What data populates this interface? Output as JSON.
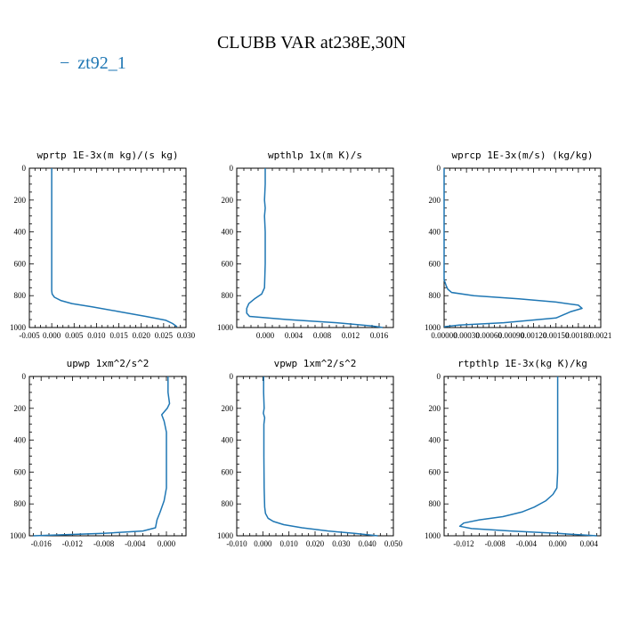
{
  "figure": {
    "title": "CLUBB VAR at238E,30N",
    "legend": [
      {
        "name": "zt92_1",
        "symbol": "−"
      }
    ]
  },
  "colors": {
    "series": "#1f77b4",
    "axes": "#000000"
  },
  "chart_data": [
    {
      "type": "line",
      "title": "wprtp  1E-3x(m kg)/(s kg)",
      "xlim": [
        -0.005,
        0.03
      ],
      "ylim": [
        1000,
        0
      ],
      "xticks": [
        -0.005,
        0.0,
        0.005,
        0.01,
        0.015,
        0.02,
        0.025,
        0.03
      ],
      "xtick_labels": [
        "-0.005",
        "0.000",
        "0.005",
        "0.010",
        "0.015",
        "0.020",
        "0.025",
        "0.030"
      ],
      "yticks": [
        0,
        200,
        400,
        600,
        800,
        1000
      ],
      "ytick_labels": [
        "0",
        "200",
        "400",
        "600",
        "800",
        "1000"
      ],
      "series": [
        {
          "name": "zt92_1",
          "x": [
            0.0,
            0.0,
            0.0,
            0.0,
            0.0,
            0.0,
            0.0,
            0.0001,
            0.0006,
            0.002,
            0.0045,
            0.009,
            0.015,
            0.021,
            0.0255,
            0.027,
            0.028
          ],
          "y": [
            0,
            200,
            400,
            600,
            700,
            750,
            770,
            790,
            810,
            830,
            850,
            870,
            900,
            930,
            955,
            975,
            995
          ]
        }
      ]
    },
    {
      "type": "line",
      "title": "wpthlp  1x(m K)/s",
      "xlim": [
        -0.004,
        0.018
      ],
      "ylim": [
        1000,
        0
      ],
      "xticks": [
        0.0,
        0.004,
        0.008,
        0.012,
        0.016
      ],
      "xtick_labels": [
        "0.000",
        "0.004",
        "0.008",
        "0.012",
        "0.016"
      ],
      "yticks": [
        0,
        200,
        400,
        600,
        800,
        1000
      ],
      "ytick_labels": [
        "0",
        "200",
        "400",
        "600",
        "800",
        "1000"
      ],
      "series": [
        {
          "name": "zt92_1",
          "x": [
            0.0,
            0.0,
            -0.0001,
            0.0,
            -0.0001,
            0.0,
            0.0,
            -0.0001,
            -0.0005,
            -0.0015,
            -0.0023,
            -0.0026,
            -0.0026,
            -0.0022,
            0.003,
            0.01,
            0.015,
            0.0165
          ],
          "y": [
            0,
            100,
            200,
            250,
            300,
            400,
            600,
            750,
            790,
            820,
            850,
            880,
            910,
            930,
            950,
            970,
            990,
            1000
          ]
        }
      ]
    },
    {
      "type": "line",
      "title": "wprcp  1E-3x(m/s) (kg/kg)",
      "xlim": [
        0.0,
        0.0021
      ],
      "ylim": [
        1000,
        0
      ],
      "xticks": [
        0.0,
        0.0003,
        0.0006,
        0.0009,
        0.0012,
        0.0015,
        0.0018,
        0.0021
      ],
      "xtick_labels": [
        "0.00000",
        "0.00030",
        "0.00060",
        "0.00090",
        "0.00120",
        "0.00150",
        "0.00180",
        "0.0021"
      ],
      "yticks": [
        0,
        200,
        400,
        600,
        800,
        1000
      ],
      "ytick_labels": [
        "0",
        "200",
        "400",
        "600",
        "800",
        "1000"
      ],
      "series": [
        {
          "name": "zt92_1",
          "x": [
            0.0,
            0.0,
            0.0,
            0.0,
            0.0,
            3e-05,
            5e-05,
            0.0001,
            0.0004,
            0.001,
            0.0015,
            0.0018,
            0.00185,
            0.0017,
            0.0015,
            0.0008,
            0.0002,
            0.0
          ],
          "y": [
            0,
            400,
            500,
            600,
            700,
            740,
            760,
            780,
            800,
            820,
            840,
            860,
            880,
            900,
            940,
            970,
            985,
            995
          ]
        }
      ]
    },
    {
      "type": "line",
      "title": "upwp  1xm^2/s^2",
      "xlim": [
        -0.0175,
        0.0025
      ],
      "ylim": [
        1000,
        0
      ],
      "xticks": [
        -0.016,
        -0.012,
        -0.008,
        -0.004,
        0.0
      ],
      "xtick_labels": [
        "-0.016",
        "-0.012",
        "-0.008",
        "-0.004",
        "0.000"
      ],
      "yticks": [
        0,
        200,
        400,
        600,
        800,
        1000
      ],
      "ytick_labels": [
        "0",
        "200",
        "400",
        "600",
        "800",
        "1000"
      ],
      "series": [
        {
          "name": "zt92_1",
          "x": [
            0.0002,
            0.0002,
            0.0004,
            0.0001,
            -0.0006,
            -0.0003,
            0.0,
            0.0,
            0.0,
            0.0,
            -0.0003,
            -0.0008,
            -0.0012,
            -0.0014,
            -0.003,
            -0.008,
            -0.017
          ],
          "y": [
            0,
            100,
            170,
            200,
            240,
            280,
            350,
            500,
            600,
            700,
            780,
            850,
            900,
            950,
            970,
            985,
            1000
          ]
        }
      ]
    },
    {
      "type": "line",
      "title": "vpwp  1xm^2/s^2",
      "xlim": [
        -0.01,
        0.05
      ],
      "ylim": [
        1000,
        0
      ],
      "xticks": [
        -0.01,
        0.0,
        0.01,
        0.02,
        0.03,
        0.04,
        0.05
      ],
      "xtick_labels": [
        "-0.010",
        "0.000",
        "0.010",
        "0.020",
        "0.030",
        "0.040",
        "0.050"
      ],
      "yticks": [
        0,
        200,
        400,
        600,
        800,
        1000
      ],
      "ytick_labels": [
        "0",
        "200",
        "400",
        "600",
        "800",
        "1000"
      ],
      "series": [
        {
          "name": "zt92_1",
          "x": [
            0.0003,
            0.0003,
            0.0005,
            0.0002,
            0.0007,
            0.0004,
            0.0004,
            0.0005,
            0.0007,
            0.001,
            0.002,
            0.004,
            0.008,
            0.015,
            0.025,
            0.035,
            0.044
          ],
          "y": [
            0,
            100,
            200,
            230,
            260,
            300,
            500,
            700,
            820,
            860,
            890,
            910,
            930,
            950,
            970,
            985,
            1000
          ]
        }
      ]
    },
    {
      "type": "line",
      "title": "rtpthlp  1E-3x(kg K)/kg",
      "xlim": [
        -0.0145,
        0.0055
      ],
      "ylim": [
        1000,
        0
      ],
      "xticks": [
        -0.012,
        -0.008,
        -0.004,
        0.0,
        0.004
      ],
      "xtick_labels": [
        "-0.012",
        "-0.008",
        "-0.004",
        "0.000",
        "0.004"
      ],
      "yticks": [
        0,
        200,
        400,
        600,
        800,
        1000
      ],
      "ytick_labels": [
        "0",
        "200",
        "400",
        "600",
        "800",
        "1000"
      ],
      "series": [
        {
          "name": "zt92_1",
          "x": [
            0.0,
            0.0,
            0.0,
            0.0,
            -0.0001,
            -0.0006,
            -0.0015,
            -0.003,
            -0.0045,
            -0.007,
            -0.01,
            -0.012,
            -0.0125,
            -0.011,
            -0.006,
            0.0,
            0.005
          ],
          "y": [
            0,
            200,
            400,
            600,
            700,
            740,
            780,
            820,
            850,
            880,
            900,
            920,
            940,
            955,
            970,
            985,
            1000
          ]
        }
      ]
    }
  ]
}
